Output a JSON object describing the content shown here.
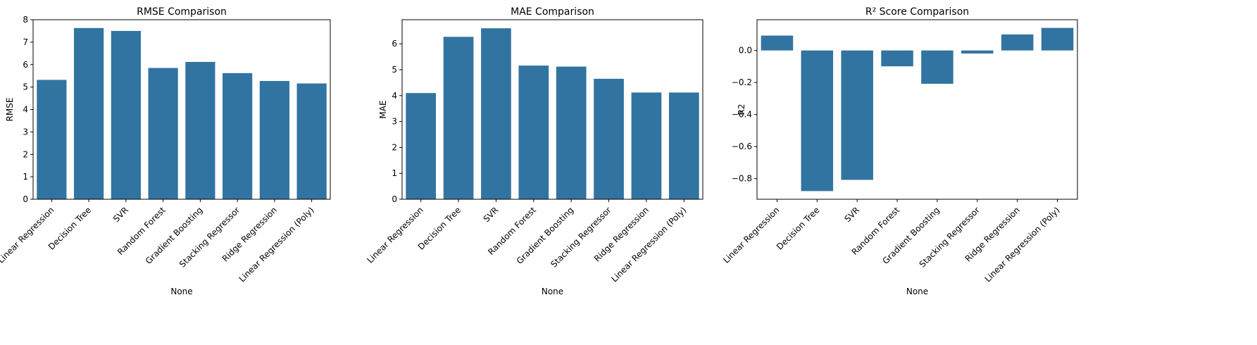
{
  "bar_color": "#3274a1",
  "chart_data": [
    {
      "type": "bar",
      "title": "RMSE Comparison",
      "xlabel": "None",
      "ylabel": "RMSE",
      "categories": [
        "Linear Regression",
        "Decision Tree",
        "SVR",
        "Random Forest",
        "Gradient Boosting",
        "Stacking Regressor",
        "Ridge Regression",
        "Linear Regression (Poly)"
      ],
      "values": [
        5.32,
        7.63,
        7.5,
        5.85,
        6.12,
        5.62,
        5.27,
        5.16
      ],
      "ylim": [
        0,
        8
      ],
      "yticks": [
        0,
        1,
        2,
        3,
        4,
        5,
        6,
        7,
        8
      ],
      "ytick_labels": [
        "0",
        "1",
        "2",
        "3",
        "4",
        "5",
        "6",
        "7",
        "8"
      ],
      "grid": false,
      "legend": false
    },
    {
      "type": "bar",
      "title": "MAE Comparison",
      "xlabel": "None",
      "ylabel": "MAE",
      "categories": [
        "Linear Regression",
        "Decision Tree",
        "SVR",
        "Random Forest",
        "Gradient Boosting",
        "Stacking Regressor",
        "Ridge Regression",
        "Linear Regression (Poly)"
      ],
      "values": [
        4.1,
        6.27,
        6.6,
        5.16,
        5.12,
        4.65,
        4.12,
        4.12
      ],
      "ylim": [
        0,
        6.93
      ],
      "yticks": [
        0,
        1,
        2,
        3,
        4,
        5,
        6
      ],
      "ytick_labels": [
        "0",
        "1",
        "2",
        "3",
        "4",
        "5",
        "6"
      ],
      "grid": false,
      "legend": false
    },
    {
      "type": "bar",
      "title": "R² Score Comparison",
      "xlabel": "None",
      "ylabel": "R2",
      "categories": [
        "Linear Regression",
        "Decision Tree",
        "SVR",
        "Random Forest",
        "Gradient Boosting",
        "Stacking Regressor",
        "Ridge Regression",
        "Linear Regression (Poly)"
      ],
      "values": [
        0.093,
        -0.878,
        -0.808,
        -0.099,
        -0.208,
        -0.019,
        0.1,
        0.141
      ],
      "ylim": [
        -0.929,
        0.192
      ],
      "yticks": [
        -0.8,
        -0.6,
        -0.4,
        -0.2,
        0.0
      ],
      "ytick_labels": [
        "−0.8",
        "−0.6",
        "−0.4",
        "−0.2",
        "0.0"
      ],
      "grid": false,
      "legend": false
    }
  ]
}
